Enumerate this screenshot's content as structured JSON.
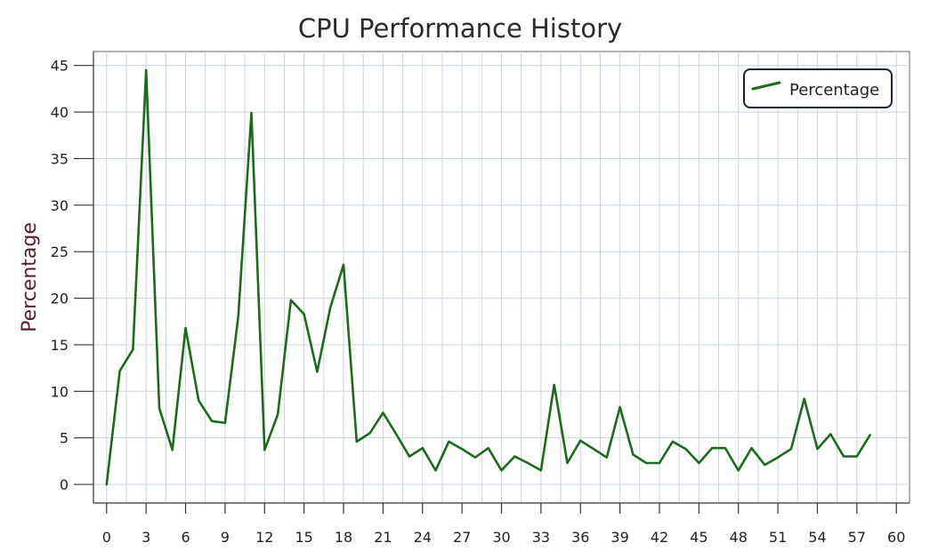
{
  "chart_data": {
    "type": "line",
    "title": "CPU Performance History",
    "xlabel": "",
    "ylabel": "Percentage",
    "xlim": [
      -1,
      61
    ],
    "ylim": [
      -2,
      46.5
    ],
    "x_ticks": [
      0,
      3,
      6,
      9,
      12,
      15,
      18,
      21,
      24,
      27,
      30,
      33,
      36,
      39,
      42,
      45,
      48,
      51,
      54,
      57,
      60
    ],
    "y_ticks": [
      0,
      5,
      10,
      15,
      20,
      25,
      30,
      35,
      40,
      45
    ],
    "grid": true,
    "legend_position": "top-right",
    "line_color": "#1a6b1a",
    "series": [
      {
        "name": "Percentage",
        "x": [
          0,
          1,
          2,
          3,
          4,
          5,
          6,
          7,
          8,
          9,
          10,
          11,
          12,
          13,
          14,
          15,
          16,
          17,
          18,
          19,
          20,
          21,
          22,
          23,
          24,
          25,
          26,
          27,
          28,
          29,
          30,
          31,
          32,
          33,
          34,
          35,
          36,
          37,
          38,
          39,
          40,
          41,
          42,
          43,
          44,
          45,
          46,
          47,
          48,
          49,
          50,
          51,
          52,
          53,
          54,
          55,
          56,
          57,
          58
        ],
        "values": [
          0,
          12.2,
          14.5,
          44.5,
          8.2,
          3.7,
          16.8,
          9.0,
          6.8,
          6.6,
          18.0,
          39.9,
          3.7,
          7.5,
          19.8,
          18.3,
          12.1,
          19.0,
          23.6,
          4.6,
          5.5,
          7.7,
          5.4,
          3.0,
          3.9,
          1.5,
          4.6,
          3.8,
          2.9,
          3.9,
          1.5,
          3.0,
          2.3,
          1.5,
          10.7,
          2.3,
          4.7,
          3.8,
          2.9,
          8.3,
          3.2,
          2.3,
          2.3,
          4.6,
          3.8,
          2.3,
          3.9,
          3.9,
          1.5,
          3.9,
          2.1,
          2.9,
          3.8,
          9.2,
          3.8,
          5.4,
          3.0,
          3.0,
          5.3
        ]
      }
    ]
  }
}
